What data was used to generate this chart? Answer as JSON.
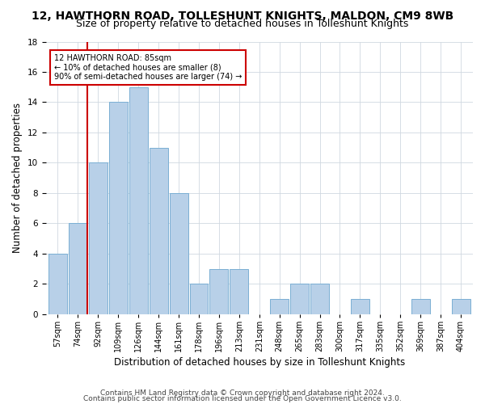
{
  "title": "12, HAWTHORN ROAD, TOLLESHUNT KNIGHTS, MALDON, CM9 8WB",
  "subtitle": "Size of property relative to detached houses in Tolleshunt Knights",
  "xlabel": "Distribution of detached houses by size in Tolleshunt Knights",
  "ylabel": "Number of detached properties",
  "footnote1": "Contains HM Land Registry data © Crown copyright and database right 2024.",
  "footnote2": "Contains public sector information licensed under the Open Government Licence v3.0.",
  "bins": [
    "57sqm",
    "74sqm",
    "92sqm",
    "109sqm",
    "126sqm",
    "144sqm",
    "161sqm",
    "178sqm",
    "196sqm",
    "213sqm",
    "231sqm",
    "248sqm",
    "265sqm",
    "283sqm",
    "300sqm",
    "317sqm",
    "335sqm",
    "352sqm",
    "369sqm",
    "387sqm",
    "404sqm"
  ],
  "counts": [
    4,
    6,
    10,
    14,
    15,
    11,
    8,
    2,
    3,
    3,
    0,
    1,
    2,
    2,
    0,
    1,
    0,
    0,
    1,
    0,
    1
  ],
  "bar_color": "#b8d0e8",
  "bar_edge_color": "#7aafd4",
  "property_line_idx": 1.47,
  "property_line_color": "#cc0000",
  "annotation_line1": "12 HAWTHORN ROAD: 85sqm",
  "annotation_line2": "← 10% of detached houses are smaller (8)",
  "annotation_line3": "90% of semi-detached houses are larger (74) →",
  "annotation_box_color": "#cc0000",
  "ylim": [
    0,
    18
  ],
  "yticks": [
    0,
    2,
    4,
    6,
    8,
    10,
    12,
    14,
    16,
    18
  ],
  "background_color": "#ffffff",
  "plot_background": "#ffffff",
  "grid_color": "#d0d8e0",
  "title_fontsize": 10,
  "subtitle_fontsize": 9,
  "axis_label_fontsize": 8.5,
  "tick_fontsize": 7,
  "footnote_fontsize": 6.5
}
